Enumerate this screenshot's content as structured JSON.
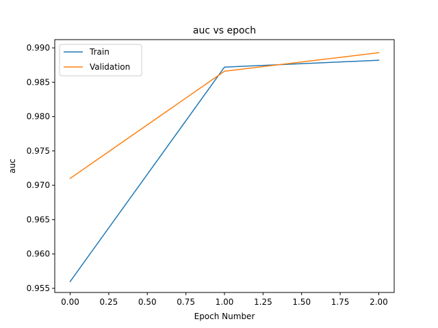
{
  "chart_data": {
    "type": "line",
    "title": "auc vs epoch",
    "xlabel": "Epoch Number",
    "ylabel": "auc",
    "x": [
      0,
      1,
      2
    ],
    "xlim": [
      -0.1,
      2.1
    ],
    "ylim": [
      0.9544,
      0.9912
    ],
    "xticks": [
      0.0,
      0.25,
      0.5,
      0.75,
      1.0,
      1.25,
      1.5,
      1.75,
      2.0
    ],
    "xtick_labels": [
      "0.00",
      "0.25",
      "0.50",
      "0.75",
      "1.00",
      "1.25",
      "1.50",
      "1.75",
      "2.00"
    ],
    "yticks": [
      0.955,
      0.96,
      0.965,
      0.97,
      0.975,
      0.98,
      0.985,
      0.99
    ],
    "ytick_labels": [
      "0.955",
      "0.960",
      "0.965",
      "0.970",
      "0.975",
      "0.980",
      "0.985",
      "0.990"
    ],
    "grid": false,
    "legend_position": "top-left",
    "series": [
      {
        "name": "Train",
        "color": "#1f77b4",
        "values": [
          0.956,
          0.9872,
          0.9882
        ]
      },
      {
        "name": "Validation",
        "color": "#ff7f0e",
        "values": [
          0.971,
          0.9866,
          0.9893
        ]
      }
    ]
  }
}
